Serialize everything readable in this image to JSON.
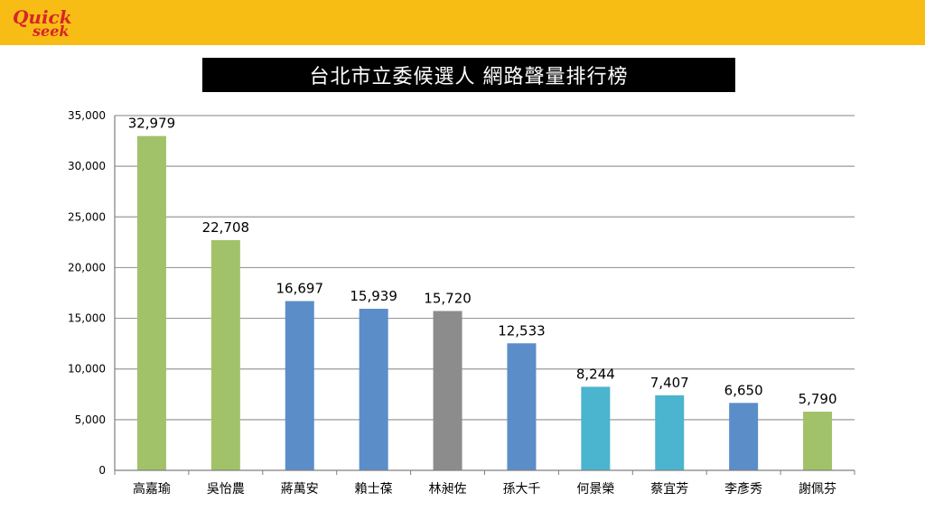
{
  "header": {
    "background_color": "#f7bd14",
    "logo": {
      "line1": "Quick",
      "line2": "seek",
      "color": "#d8242c"
    }
  },
  "title": "台北市立委候選人 網路聲量排行榜",
  "chart_data": {
    "type": "bar",
    "categories": [
      "高嘉瑜",
      "吳怡農",
      "蔣萬安",
      "賴士葆",
      "林昶佐",
      "孫大千",
      "何景榮",
      "蔡宜芳",
      "李彥秀",
      "謝佩芬"
    ],
    "values": [
      32979,
      22708,
      16697,
      15939,
      15720,
      12533,
      8244,
      7407,
      6650,
      5790
    ],
    "value_labels": [
      "32,979",
      "22,708",
      "16,697",
      "15,939",
      "15,720",
      "12,533",
      "8,244",
      "7,407",
      "6,650",
      "5,790"
    ],
    "bar_colors": [
      "#a2c26a",
      "#a2c26a",
      "#5b8dc9",
      "#5b8dc9",
      "#8c8c8c",
      "#5b8dc9",
      "#4bb4cf",
      "#4bb4cf",
      "#5b8dc9",
      "#a2c26a"
    ],
    "ylim": [
      0,
      35000
    ],
    "yticks": [
      0,
      5000,
      10000,
      15000,
      20000,
      25000,
      30000,
      35000
    ],
    "ytick_labels": [
      "0",
      "5,000",
      "10,000",
      "15,000",
      "20,000",
      "25,000",
      "30,000",
      "35,000"
    ],
    "title": "台北市立委候選人 網路聲量排行榜",
    "xlabel": "",
    "ylabel": "",
    "grid": "horizontal",
    "legend": "none"
  }
}
